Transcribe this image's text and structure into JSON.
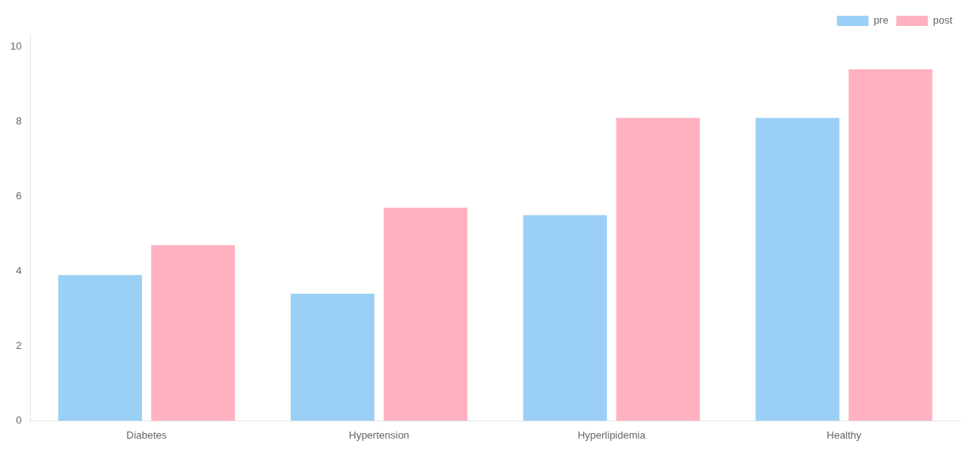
{
  "chart_data": {
    "type": "bar",
    "categories": [
      "Diabetes",
      "Hypertension",
      "Hyperlipidemia",
      "Healthy"
    ],
    "series": [
      {
        "name": "pre",
        "values": [
          3.9,
          3.4,
          5.5,
          8.1
        ]
      },
      {
        "name": "post",
        "values": [
          4.7,
          5.7,
          8.1,
          9.4
        ]
      }
    ],
    "ylim": [
      0,
      10.35
    ],
    "yticks": [
      0,
      2,
      4,
      6,
      8,
      10
    ],
    "grid": false,
    "legend": "upper right"
  }
}
